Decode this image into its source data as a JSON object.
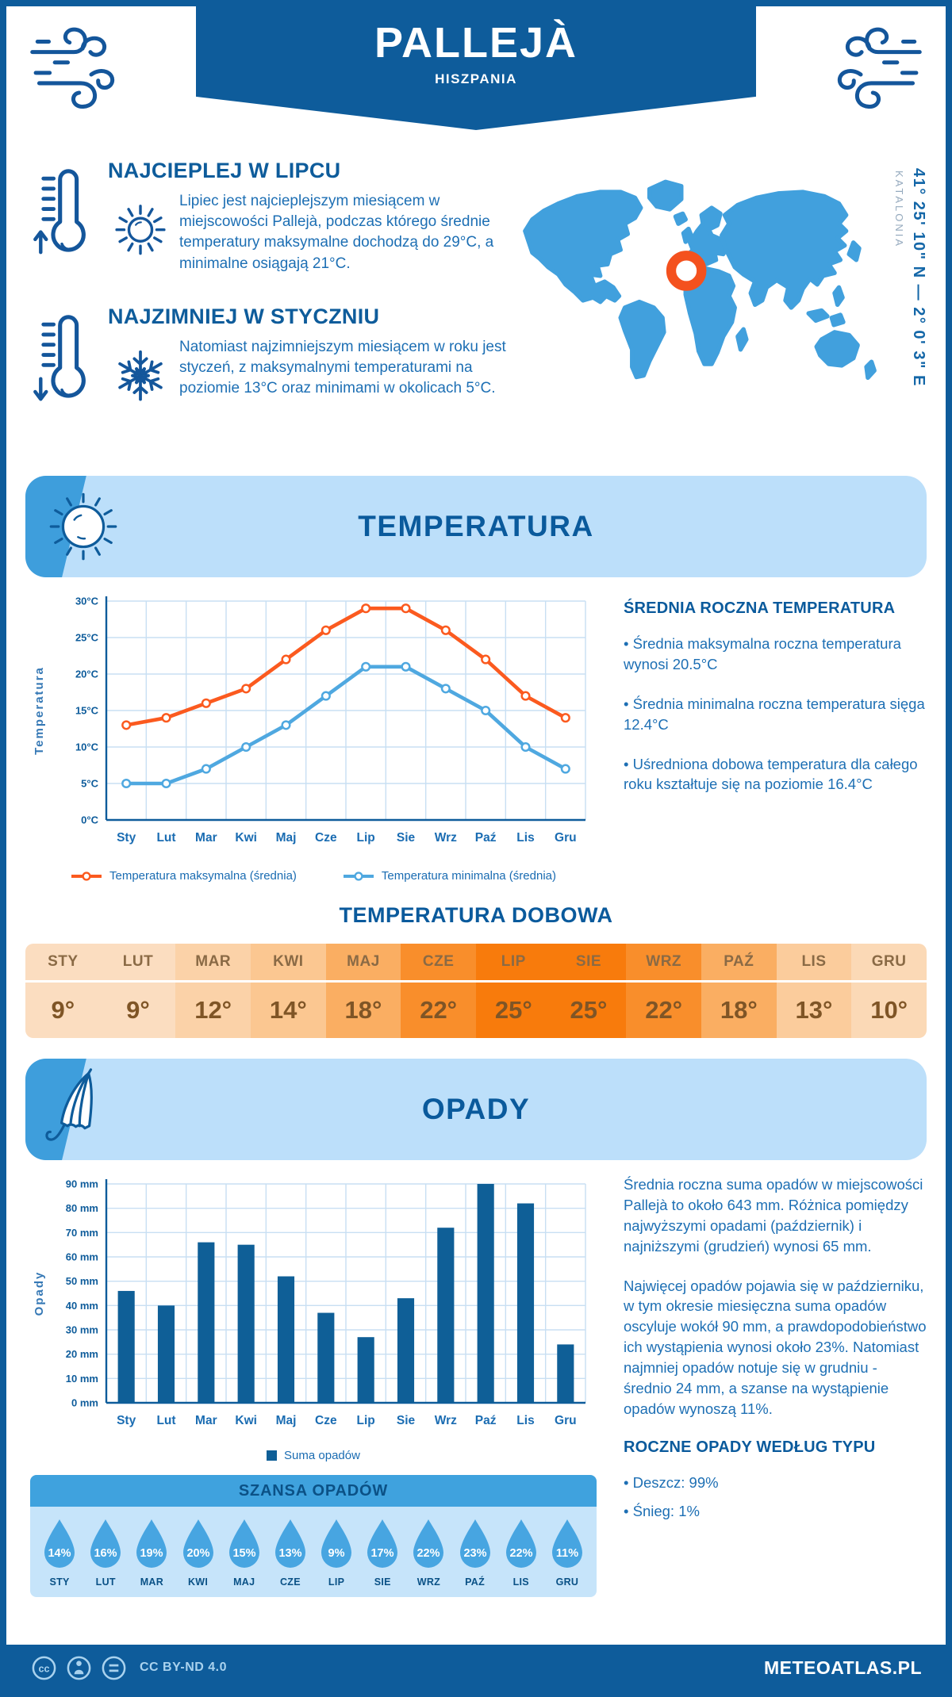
{
  "header": {
    "title": "PALLEJÀ",
    "subtitle": "HISZPANIA"
  },
  "location": {
    "coordinates": "41° 25' 10\" N — 2° 0' 3\" E",
    "region": "KATALONIA"
  },
  "highlights": [
    {
      "title": "NAJCIEPLEJ W LIPCU",
      "text": "Lipiec jest najcieplejszym miesiącem w miejscowości Pallejà, podczas którego średnie temperatury maksymalne dochodzą do 29°C, a minimalne osiągają 21°C."
    },
    {
      "title": "NAJZIMNIEJ W STYCZNIU",
      "text": "Natomiast najzimniejszym miesiącem w roku jest styczeń, z maksymalnymi temperaturami na poziomie 13°C oraz minimami w okolicach 5°C."
    }
  ],
  "temperature": {
    "banner": "TEMPERATURA",
    "summary_title": "ŚREDNIA ROCZNA TEMPERATURA",
    "bullets": [
      "• Średnia maksymalna roczna temperatura wynosi 20.5°C",
      "• Średnia minimalna roczna temperatura sięga 12.4°C",
      "• Uśredniona dobowa temperatura dla całego roku kształtuje się na poziomie 16.4°C"
    ],
    "daily_title": "TEMPERATURA DOBOWA",
    "daily": {
      "months": [
        "STY",
        "LUT",
        "MAR",
        "KWI",
        "MAJ",
        "CZE",
        "LIP",
        "SIE",
        "WRZ",
        "PAŹ",
        "LIS",
        "GRU"
      ],
      "values": [
        "9°",
        "9°",
        "12°",
        "14°",
        "18°",
        "22°",
        "25°",
        "25°",
        "22°",
        "18°",
        "13°",
        "10°"
      ],
      "cell_colors": [
        "#FBDDC0",
        "#FBDDC0",
        "#FBD2A8",
        "#FBC791",
        "#FAAE62",
        "#F98E2B",
        "#F87B0C",
        "#F87B0C",
        "#F98E2B",
        "#FAAE62",
        "#FBCC9C",
        "#FBD9B6"
      ],
      "month_color": "#8A6A45",
      "value_color": "#7F5526"
    }
  },
  "precipitation": {
    "banner": "OPADY",
    "paragraphs": [
      "Średnia roczna suma opadów w miejscowości Pallejà to około 643 mm. Różnica pomiędzy najwyższymi opadami (październik) i najniższymi (grudzień) wynosi 65 mm.",
      "Najwięcej opadów pojawia się w październiku, w tym okresie miesięczna suma opadów oscyluje wokół 90 mm, a prawdopodobieństwo ich wystąpienia wynosi około 23%. Natomiast najmniej opadów notuje się w grudniu - średnio 24 mm, a szanse na wystąpienie opadów wynoszą 11%."
    ],
    "type_title": "ROCZNE OPADY WEDŁUG TYPU",
    "type_bullets": [
      "• Deszcz: 99%",
      "• Śnieg: 1%"
    ],
    "chance": {
      "title": "SZANSA OPADÓW",
      "months": [
        "STY",
        "LUT",
        "MAR",
        "KWI",
        "MAJ",
        "CZE",
        "LIP",
        "SIE",
        "WRZ",
        "PAŹ",
        "LIS",
        "GRU"
      ],
      "values": [
        "14%",
        "16%",
        "19%",
        "20%",
        "15%",
        "13%",
        "9%",
        "17%",
        "22%",
        "23%",
        "22%",
        "11%"
      ],
      "drop_color": "#47A5E1"
    }
  },
  "footer": {
    "license": "CC BY-ND 4.0",
    "site": "METEOATLAS.PL"
  },
  "colors": {
    "brand": "#0E5C9B",
    "body_text": "#1D6FB4",
    "panel_light": "#BCDFFA",
    "panel_medium": "#3E9EDC",
    "map_fill": "#41A0DD",
    "marker": "#F4511E",
    "max_line": "#FB5A1F",
    "min_line": "#4FA8E0",
    "bar": "#0F5F97",
    "grid": "#C8DFF3"
  },
  "chart_data": [
    {
      "type": "line",
      "title": "",
      "categories": [
        "Sty",
        "Lut",
        "Mar",
        "Kwi",
        "Maj",
        "Cze",
        "Lip",
        "Sie",
        "Wrz",
        "Paź",
        "Lis",
        "Gru"
      ],
      "series": [
        {
          "name": "Temperatura maksymalna (średnia)",
          "color": "#FB5A1F",
          "values": [
            13,
            14,
            16,
            18,
            22,
            26,
            29,
            29,
            26,
            22,
            17,
            14
          ]
        },
        {
          "name": "Temperatura minimalna (średnia)",
          "color": "#4FA8E0",
          "values": [
            5,
            5,
            7,
            10,
            13,
            17,
            21,
            21,
            18,
            15,
            10,
            7
          ]
        }
      ],
      "xlabel": "",
      "ylabel": "Temperatura",
      "ylim": [
        0,
        30
      ],
      "ystep": 5,
      "yunit": "°C",
      "grid": true,
      "legend_position": "bottom"
    },
    {
      "type": "bar",
      "title": "",
      "categories": [
        "Sty",
        "Lut",
        "Mar",
        "Kwi",
        "Maj",
        "Cze",
        "Lip",
        "Sie",
        "Wrz",
        "Paź",
        "Lis",
        "Gru"
      ],
      "series": [
        {
          "name": "Suma opadów",
          "color": "#0F5F97",
          "values": [
            46,
            40,
            66,
            65,
            52,
            37,
            27,
            43,
            72,
            90,
            82,
            24
          ]
        }
      ],
      "xlabel": "",
      "ylabel": "Opady",
      "ylim": [
        0,
        90
      ],
      "ystep": 10,
      "yunit": " mm",
      "grid": true,
      "legend_position": "bottom"
    },
    {
      "type": "table",
      "title": "TEMPERATURA DOBOWA",
      "categories": [
        "STY",
        "LUT",
        "MAR",
        "KWI",
        "MAJ",
        "CZE",
        "LIP",
        "SIE",
        "WRZ",
        "PAŹ",
        "LIS",
        "GRU"
      ],
      "values": [
        9,
        9,
        12,
        14,
        18,
        22,
        25,
        25,
        22,
        18,
        13,
        10
      ]
    },
    {
      "type": "table",
      "title": "SZANSA OPADÓW (%)",
      "categories": [
        "STY",
        "LUT",
        "MAR",
        "KWI",
        "MAJ",
        "CZE",
        "LIP",
        "SIE",
        "WRZ",
        "PAŹ",
        "LIS",
        "GRU"
      ],
      "values": [
        14,
        16,
        19,
        20,
        15,
        13,
        9,
        17,
        22,
        23,
        22,
        11
      ]
    }
  ]
}
